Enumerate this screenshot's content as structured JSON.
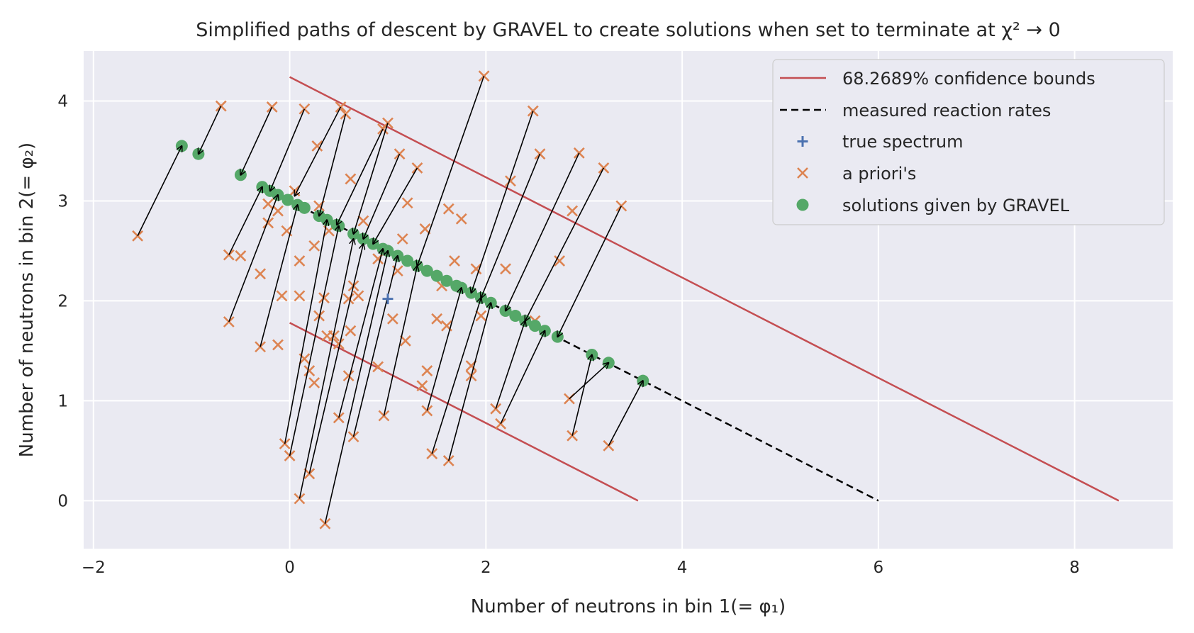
{
  "chart_data": {
    "type": "scatter",
    "title": "Simplified paths of descent by GRAVEL to create solutions when set to terminate at χ² → 0",
    "xlabel": "Number of neutrons in bin 1(= φ₁)",
    "ylabel": "Number of neutrons in bin 2(= φ₂)",
    "xlim": [
      -2.1,
      9.0
    ],
    "ylim": [
      -0.48,
      4.5
    ],
    "xticks": [
      -2,
      0,
      2,
      4,
      6,
      8
    ],
    "yticks": [
      0,
      1,
      2,
      3,
      4
    ],
    "grid": true,
    "legend_position": "top-right",
    "colors": {
      "background": "#eaeaf2",
      "grid": "#ffffff",
      "bounds": "#c44e52",
      "measured": "#000000",
      "true_spectrum": "#4c72b0",
      "priori": "#dd8452",
      "solutions": "#55a868",
      "arrows": "#000000"
    },
    "legend": [
      {
        "label": "68.2689% confidence bounds",
        "kind": "line",
        "color": "#c44e52"
      },
      {
        "label": "measured reaction rates",
        "kind": "dashed",
        "color": "#000000"
      },
      {
        "label": "true spectrum",
        "kind": "plus",
        "color": "#4c72b0"
      },
      {
        "label": "a priori's",
        "kind": "x",
        "color": "#dd8452"
      },
      {
        "label": "solutions given by GRAVEL",
        "kind": "dot",
        "color": "#55a868"
      }
    ],
    "series": [
      {
        "name": "68.2689% confidence bounds",
        "kind": "line",
        "segments": [
          [
            [
              0,
              4.24
            ],
            [
              8.45,
              0
            ]
          ],
          [
            [
              0,
              1.78
            ],
            [
              3.55,
              0
            ]
          ]
        ]
      },
      {
        "name": "measured reaction rates",
        "kind": "dashed",
        "points": [
          [
            -0.3,
            3.15
          ],
          [
            6.0,
            0
          ]
        ]
      },
      {
        "name": "true spectrum",
        "kind": "plus",
        "points": [
          [
            1.0,
            2.02
          ]
        ]
      },
      {
        "name": "solutions given by GRAVEL",
        "kind": "dot",
        "points": [
          [
            -1.1,
            3.55
          ],
          [
            -0.93,
            3.47
          ],
          [
            -0.5,
            3.26
          ],
          [
            -0.28,
            3.14
          ],
          [
            -0.2,
            3.1
          ],
          [
            -0.12,
            3.06
          ],
          [
            -0.02,
            3.01
          ],
          [
            0.08,
            2.96
          ],
          [
            0.15,
            2.93
          ],
          [
            0.3,
            2.85
          ],
          [
            0.38,
            2.81
          ],
          [
            0.48,
            2.76
          ],
          [
            0.5,
            2.75
          ],
          [
            0.65,
            2.67
          ],
          [
            0.75,
            2.62
          ],
          [
            0.85,
            2.57
          ],
          [
            0.95,
            2.52
          ],
          [
            1.0,
            2.5
          ],
          [
            1.1,
            2.45
          ],
          [
            1.2,
            2.4
          ],
          [
            1.3,
            2.35
          ],
          [
            1.4,
            2.3
          ],
          [
            1.5,
            2.25
          ],
          [
            1.6,
            2.2
          ],
          [
            1.7,
            2.15
          ],
          [
            1.75,
            2.13
          ],
          [
            1.85,
            2.08
          ],
          [
            1.95,
            2.03
          ],
          [
            2.05,
            1.98
          ],
          [
            2.2,
            1.9
          ],
          [
            2.3,
            1.85
          ],
          [
            2.4,
            1.8
          ],
          [
            2.5,
            1.75
          ],
          [
            2.6,
            1.7
          ],
          [
            2.73,
            1.64
          ],
          [
            3.08,
            1.46
          ],
          [
            3.25,
            1.38
          ],
          [
            3.6,
            1.2
          ]
        ]
      },
      {
        "name": "a priori's",
        "kind": "x",
        "points": [
          [
            -1.55,
            2.65
          ],
          [
            -0.7,
            3.95
          ],
          [
            -0.62,
            2.46
          ],
          [
            -0.62,
            1.79
          ],
          [
            -0.5,
            2.45
          ],
          [
            -0.3,
            2.27
          ],
          [
            -0.3,
            1.54
          ],
          [
            -0.22,
            2.78
          ],
          [
            -0.22,
            2.97
          ],
          [
            -0.18,
            3.94
          ],
          [
            -0.12,
            2.9
          ],
          [
            -0.12,
            1.56
          ],
          [
            -0.08,
            2.05
          ],
          [
            -0.05,
            0.57
          ],
          [
            -0.03,
            2.7
          ],
          [
            0.0,
            0.45
          ],
          [
            0.05,
            3.1
          ],
          [
            0.1,
            0.02
          ],
          [
            0.1,
            2.05
          ],
          [
            0.1,
            2.4
          ],
          [
            0.15,
            3.92
          ],
          [
            0.15,
            1.42
          ],
          [
            0.2,
            1.3
          ],
          [
            0.2,
            0.27
          ],
          [
            0.25,
            2.55
          ],
          [
            0.25,
            1.18
          ],
          [
            0.28,
            3.55
          ],
          [
            0.3,
            2.95
          ],
          [
            0.3,
            1.85
          ],
          [
            0.35,
            2.03
          ],
          [
            0.36,
            -0.23
          ],
          [
            0.38,
            1.65
          ],
          [
            0.4,
            2.7
          ],
          [
            0.45,
            1.65
          ],
          [
            0.5,
            0.83
          ],
          [
            0.5,
            1.57
          ],
          [
            0.52,
            3.94
          ],
          [
            0.57,
            3.87
          ],
          [
            0.6,
            2.02
          ],
          [
            0.6,
            1.25
          ],
          [
            0.62,
            1.7
          ],
          [
            0.62,
            3.22
          ],
          [
            0.65,
            2.15
          ],
          [
            0.65,
            0.64
          ],
          [
            0.7,
            2.05
          ],
          [
            0.75,
            2.8
          ],
          [
            0.9,
            1.34
          ],
          [
            0.9,
            2.42
          ],
          [
            0.95,
            3.72
          ],
          [
            0.96,
            0.85
          ],
          [
            1.0,
            3.78
          ],
          [
            1.05,
            1.82
          ],
          [
            1.1,
            2.3
          ],
          [
            1.12,
            3.47
          ],
          [
            1.15,
            2.62
          ],
          [
            1.18,
            1.6
          ],
          [
            1.2,
            2.98
          ],
          [
            1.3,
            3.33
          ],
          [
            1.35,
            1.15
          ],
          [
            1.38,
            2.72
          ],
          [
            1.4,
            0.9
          ],
          [
            1.4,
            1.3
          ],
          [
            1.45,
            0.47
          ],
          [
            1.5,
            1.82
          ],
          [
            1.55,
            2.15
          ],
          [
            1.6,
            1.75
          ],
          [
            1.62,
            2.92
          ],
          [
            1.62,
            0.4
          ],
          [
            1.68,
            2.4
          ],
          [
            1.75,
            2.82
          ],
          [
            1.85,
            1.35
          ],
          [
            1.85,
            1.25
          ],
          [
            1.9,
            2.32
          ],
          [
            1.95,
            1.85
          ],
          [
            1.98,
            4.25
          ],
          [
            2.1,
            0.92
          ],
          [
            2.15,
            0.77
          ],
          [
            2.2,
            2.32
          ],
          [
            2.25,
            3.2
          ],
          [
            2.48,
            3.9
          ],
          [
            2.5,
            1.8
          ],
          [
            2.55,
            3.47
          ],
          [
            2.75,
            2.4
          ],
          [
            2.85,
            1.02
          ],
          [
            2.88,
            2.9
          ],
          [
            2.88,
            0.65
          ],
          [
            2.95,
            3.48
          ],
          [
            3.2,
            3.33
          ],
          [
            3.25,
            0.55
          ],
          [
            3.38,
            2.95
          ]
        ]
      }
    ],
    "arrows": [
      [
        [
          -1.55,
          2.65
        ],
        [
          -1.1,
          3.55
        ]
      ],
      [
        [
          -0.7,
          3.95
        ],
        [
          -0.93,
          3.47
        ]
      ],
      [
        [
          -0.18,
          3.94
        ],
        [
          -0.5,
          3.26
        ]
      ],
      [
        [
          0.15,
          3.92
        ],
        [
          -0.2,
          3.1
        ]
      ],
      [
        [
          0.52,
          3.94
        ],
        [
          0.05,
          3.05
        ]
      ],
      [
        [
          0.57,
          3.87
        ],
        [
          0.3,
          2.85
        ]
      ],
      [
        [
          0.95,
          3.72
        ],
        [
          0.48,
          2.76
        ]
      ],
      [
        [
          1.0,
          3.78
        ],
        [
          0.65,
          2.67
        ]
      ],
      [
        [
          1.12,
          3.47
        ],
        [
          0.75,
          2.62
        ]
      ],
      [
        [
          1.3,
          3.33
        ],
        [
          0.85,
          2.57
        ]
      ],
      [
        [
          1.98,
          4.25
        ],
        [
          1.3,
          2.35
        ]
      ],
      [
        [
          2.48,
          3.9
        ],
        [
          1.85,
          2.08
        ]
      ],
      [
        [
          2.55,
          3.47
        ],
        [
          1.95,
          2.03
        ]
      ],
      [
        [
          2.95,
          3.48
        ],
        [
          2.2,
          1.9
        ]
      ],
      [
        [
          3.2,
          3.33
        ],
        [
          2.4,
          1.8
        ]
      ],
      [
        [
          3.38,
          2.95
        ],
        [
          2.73,
          1.64
        ]
      ],
      [
        [
          -0.62,
          2.46
        ],
        [
          -0.28,
          3.14
        ]
      ],
      [
        [
          -0.62,
          1.79
        ],
        [
          -0.12,
          3.06
        ]
      ],
      [
        [
          -0.3,
          1.54
        ],
        [
          0.08,
          2.96
        ]
      ],
      [
        [
          -0.05,
          0.57
        ],
        [
          0.38,
          2.81
        ]
      ],
      [
        [
          0.0,
          0.45
        ],
        [
          0.5,
          2.75
        ]
      ],
      [
        [
          0.1,
          0.02
        ],
        [
          0.65,
          2.62
        ]
      ],
      [
        [
          0.2,
          0.27
        ],
        [
          0.75,
          2.57
        ]
      ],
      [
        [
          0.36,
          -0.23
        ],
        [
          1.0,
          2.5
        ]
      ],
      [
        [
          0.5,
          0.83
        ],
        [
          0.95,
          2.52
        ]
      ],
      [
        [
          0.65,
          0.64
        ],
        [
          1.1,
          2.45
        ]
      ],
      [
        [
          0.96,
          0.85
        ],
        [
          1.3,
          2.35
        ]
      ],
      [
        [
          1.4,
          0.9
        ],
        [
          1.75,
          2.13
        ]
      ],
      [
        [
          1.45,
          0.47
        ],
        [
          1.95,
          2.03
        ]
      ],
      [
        [
          1.62,
          0.4
        ],
        [
          2.05,
          1.98
        ]
      ],
      [
        [
          2.1,
          0.92
        ],
        [
          2.4,
          1.8
        ]
      ],
      [
        [
          2.15,
          0.77
        ],
        [
          2.6,
          1.7
        ]
      ],
      [
        [
          2.88,
          0.65
        ],
        [
          3.08,
          1.46
        ]
      ],
      [
        [
          3.25,
          0.55
        ],
        [
          3.6,
          1.2
        ]
      ],
      [
        [
          2.85,
          1.02
        ],
        [
          3.25,
          1.38
        ]
      ]
    ]
  }
}
